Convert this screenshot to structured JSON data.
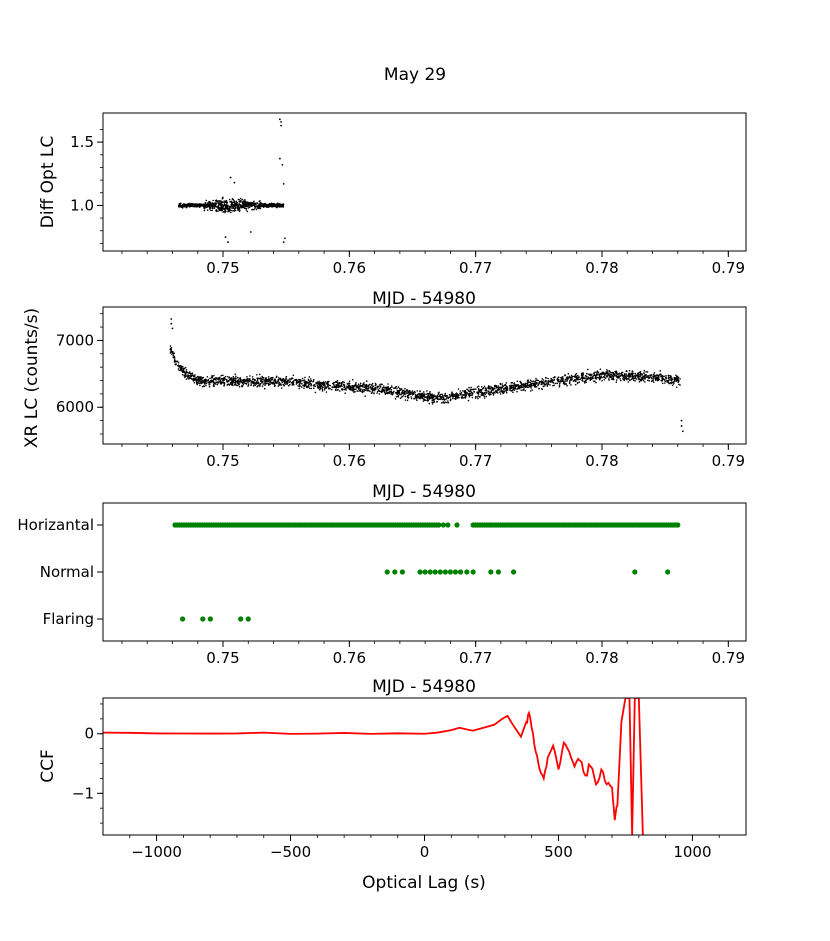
{
  "figure_title": "May 29",
  "chart_data": [
    {
      "type": "scatter",
      "ylabel": "Diff Opt LC",
      "xlabel": "",
      "xlim": [
        0.7405,
        0.7914
      ],
      "ylim": [
        0.64,
        1.73
      ],
      "xticks": [
        0.75,
        0.76,
        0.77,
        0.78,
        0.79
      ],
      "xtick_labels": [
        "0.75",
        "0.76",
        "0.77",
        "0.78",
        "0.79"
      ],
      "yticks": [
        1.0,
        1.5
      ],
      "ytick_labels": [
        "1.0",
        "1.5"
      ],
      "color": "#000000",
      "coverage": {
        "x_start": 0.7465,
        "x_end": 0.7548,
        "baseline": 1.0
      },
      "outliers": [
        [
          0.7545,
          1.68
        ],
        [
          0.7546,
          1.66
        ],
        [
          0.7546,
          1.63
        ],
        [
          0.7545,
          1.37
        ],
        [
          0.7547,
          1.32
        ],
        [
          0.7548,
          1.17
        ],
        [
          0.7506,
          1.22
        ],
        [
          0.7509,
          1.18
        ],
        [
          0.7502,
          0.75
        ],
        [
          0.7504,
          0.71
        ],
        [
          0.7522,
          0.79
        ],
        [
          0.7548,
          0.71
        ],
        [
          0.7549,
          0.74
        ]
      ]
    },
    {
      "type": "scatter",
      "ylabel": "XR LC (counts/s)",
      "xlabel": "MJD - 54980",
      "xlim": [
        0.7405,
        0.7914
      ],
      "ylim": [
        5450,
        7500
      ],
      "xticks": [
        0.75,
        0.76,
        0.77,
        0.78,
        0.79
      ],
      "xtick_labels": [
        "0.75",
        "0.76",
        "0.77",
        "0.78",
        "0.79"
      ],
      "yticks": [
        6000,
        7000
      ],
      "ytick_labels": [
        "6000",
        "7000"
      ],
      "color": "#000000",
      "trend": {
        "x": [
          0.7458,
          0.7462,
          0.7468,
          0.748,
          0.755,
          0.762,
          0.767,
          0.77,
          0.775,
          0.78,
          0.784,
          0.7862
        ],
        "y": [
          6900,
          6700,
          6550,
          6400,
          6380,
          6280,
          6130,
          6220,
          6360,
          6480,
          6450,
          6400
        ]
      },
      "outliers": [
        [
          0.7459,
          7320
        ],
        [
          0.7459,
          7250
        ],
        [
          0.746,
          7180
        ],
        [
          0.7863,
          5720
        ],
        [
          0.7864,
          5640
        ],
        [
          0.7863,
          5800
        ]
      ]
    },
    {
      "type": "scatter",
      "ylabel": "",
      "xlabel": "MJD - 54980",
      "xlim": [
        0.7405,
        0.7914
      ],
      "categories": [
        "Horizantal",
        "Normal",
        "Flaring"
      ],
      "xticks": [
        0.75,
        0.76,
        0.77,
        0.78,
        0.79
      ],
      "xtick_labels": [
        "0.75",
        "0.76",
        "0.77",
        "0.78",
        "0.79"
      ],
      "color": "#008000",
      "horizontal_segments": [
        [
          0.7462,
          0.769
        ],
        [
          0.7698,
          0.786
        ]
      ],
      "horizontal_extra": [
        0.77,
        0.7712
      ],
      "normal_points": [
        0.763,
        0.7636,
        0.7642,
        0.7656,
        0.766,
        0.7664,
        0.7668,
        0.7672,
        0.7676,
        0.768,
        0.7684,
        0.7688,
        0.7693,
        0.7698,
        0.7712,
        0.7718,
        0.773,
        0.7826,
        0.7852
      ],
      "flaring_points": [
        0.7468,
        0.7484,
        0.749,
        0.7514,
        0.752
      ]
    },
    {
      "type": "line",
      "ylabel": "CCF",
      "xlabel": "Optical Lag (s)",
      "xlim": [
        -1200,
        1200
      ],
      "ylim": [
        -1.7,
        0.6
      ],
      "xticks": [
        -1000,
        -500,
        0,
        500,
        1000
      ],
      "xtick_labels": [
        "−1000",
        "−500",
        "0",
        "500",
        "1000"
      ],
      "yticks": [
        0,
        -1
      ],
      "ytick_labels": [
        "0",
        "−1"
      ],
      "color": "#ff0000",
      "x": [
        -1200,
        -1100,
        -1000,
        -900,
        -800,
        -700,
        -600,
        -500,
        -400,
        -300,
        -200,
        -100,
        0,
        50,
        100,
        130,
        180,
        220,
        260,
        290,
        310,
        330,
        360,
        380,
        390,
        400,
        415,
        430,
        445,
        460,
        480,
        500,
        520,
        540,
        560,
        580,
        600,
        620,
        640,
        660,
        680,
        700,
        710,
        720,
        735,
        750,
        765,
        775,
        785,
        790,
        800,
        815,
        820
      ],
      "y": [
        0.02,
        0.01,
        0.0,
        0.01,
        0.0,
        0.0,
        0.01,
        0.0,
        0.0,
        0.01,
        0.0,
        0.0,
        0.0,
        0.02,
        0.06,
        0.1,
        0.05,
        0.1,
        0.15,
        0.25,
        0.3,
        0.15,
        -0.05,
        0.2,
        0.35,
        0.1,
        -0.3,
        -0.6,
        -0.75,
        -0.4,
        -0.2,
        -0.6,
        -0.15,
        -0.3,
        -0.55,
        -0.45,
        -0.7,
        -0.55,
        -0.85,
        -0.6,
        -0.85,
        -0.9,
        -1.45,
        -1.2,
        0.2,
        0.6,
        0.6,
        -1.7,
        0.6,
        0.6,
        0.6,
        -1.7,
        -1.7
      ]
    }
  ]
}
